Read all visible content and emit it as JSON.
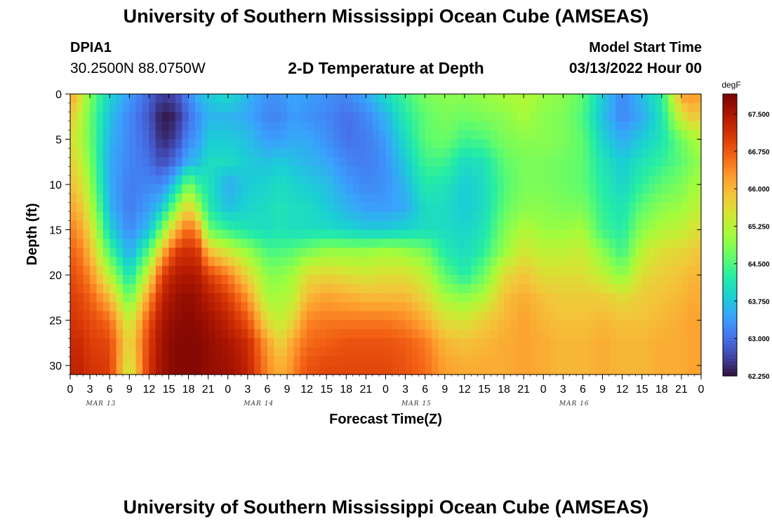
{
  "header": {
    "title": "University of Southern Mississippi Ocean Cube (AMSEAS)",
    "station_id": "DPIA1",
    "coordinates": "30.2500N  88.0750W",
    "subtitle": "2-D Temperature at Depth",
    "model_start_label": "Model Start Time",
    "model_start_value": "03/13/2022 Hour 00"
  },
  "footer": {
    "title": "University of Southern Mississippi Ocean Cube (AMSEAS)"
  },
  "chart_data": {
    "type": "heatmap",
    "title": "2-D Temperature at Depth",
    "xlabel": "Forecast Time(Z)",
    "ylabel": "Depth (ft)",
    "x_tick_labels": [
      "0",
      "3",
      "6",
      "9",
      "12",
      "15",
      "18",
      "21",
      "0",
      "3",
      "6",
      "9",
      "12",
      "15",
      "18",
      "21",
      "0",
      "3",
      "6",
      "9",
      "12",
      "15",
      "18",
      "21",
      "0",
      "3",
      "6",
      "9",
      "12",
      "15",
      "18",
      "21",
      "0"
    ],
    "day_labels": [
      "MAR 13",
      "MAR 14",
      "MAR 15",
      "MAR 16"
    ],
    "xlim_hours": [
      0,
      96
    ],
    "y_ticks": [
      0,
      5,
      10,
      15,
      20,
      25,
      30
    ],
    "ylim_ft": [
      0,
      31
    ],
    "colorbar": {
      "unit": "degF",
      "ticks": [
        "67.500",
        "66.750",
        "66.000",
        "65.250",
        "64.500",
        "63.750",
        "63.000",
        "62.250"
      ],
      "range": [
        62.25,
        67.9
      ]
    },
    "profile_hours": [
      0,
      1.5,
      3,
      6,
      9,
      12,
      14,
      16,
      18,
      19.5,
      21,
      24,
      27,
      30,
      32,
      34,
      36,
      39,
      42,
      45,
      48,
      51,
      54,
      57,
      60,
      63,
      66,
      69,
      72,
      75,
      78,
      81,
      84,
      87,
      90,
      93,
      94.5,
      96
    ],
    "depth_levels_ft": [
      0,
      2.5,
      5,
      7.5,
      10,
      12.5,
      15,
      17.5,
      20,
      22.5,
      25,
      27.5,
      30,
      31
    ],
    "temperature_degF": [
      [
        66.3,
        65.9,
        65.6,
        65.8,
        66.0,
        66.2,
        66.5,
        66.7,
        66.9,
        67.0,
        67.1,
        67.2,
        67.3,
        67.3
      ],
      [
        65.6,
        65.3,
        65.2,
        65.4,
        65.6,
        65.9,
        66.2,
        66.5,
        66.7,
        66.9,
        67.0,
        67.2,
        67.3,
        67.3
      ],
      [
        64.8,
        64.7,
        64.7,
        64.8,
        65.0,
        65.3,
        65.7,
        66.0,
        66.4,
        66.7,
        66.9,
        67.0,
        67.1,
        67.1
      ],
      [
        63.9,
        63.7,
        63.6,
        63.5,
        63.5,
        63.6,
        63.9,
        64.5,
        65.2,
        66.0,
        66.6,
        66.9,
        67.0,
        67.0
      ],
      [
        63.4,
        63.2,
        63.2,
        63.2,
        63.1,
        63.1,
        63.2,
        63.5,
        64.0,
        64.6,
        65.3,
        65.6,
        65.4,
        65.3
      ],
      [
        62.9,
        62.8,
        62.9,
        63.0,
        63.2,
        63.4,
        63.7,
        64.6,
        65.5,
        66.3,
        66.8,
        67.0,
        67.1,
        67.1
      ],
      [
        62.6,
        62.3,
        62.4,
        62.7,
        63.2,
        63.8,
        64.8,
        66.0,
        67.0,
        67.3,
        67.5,
        67.6,
        67.6,
        67.6
      ],
      [
        62.7,
        62.4,
        62.6,
        63.0,
        63.8,
        64.8,
        66.0,
        67.0,
        67.4,
        67.6,
        67.7,
        67.8,
        67.8,
        67.8
      ],
      [
        63.2,
        63.0,
        63.2,
        63.6,
        64.8,
        65.8,
        66.7,
        67.2,
        67.5,
        67.7,
        67.8,
        67.8,
        67.8,
        67.8
      ],
      [
        63.6,
        63.3,
        63.4,
        63.7,
        64.3,
        65.0,
        66.2,
        67.0,
        67.4,
        67.6,
        67.7,
        67.8,
        67.8,
        67.8
      ],
      [
        63.8,
        63.6,
        63.8,
        64.0,
        64.1,
        64.2,
        64.7,
        66.0,
        67.0,
        67.4,
        67.6,
        67.7,
        67.7,
        67.7
      ],
      [
        64.0,
        63.6,
        63.8,
        64.0,
        63.5,
        63.7,
        64.3,
        65.5,
        66.5,
        67.0,
        67.3,
        67.5,
        67.6,
        67.6
      ],
      [
        63.6,
        63.5,
        63.7,
        63.8,
        63.8,
        63.9,
        64.1,
        65.0,
        65.7,
        66.3,
        66.8,
        67.2,
        67.3,
        67.3
      ],
      [
        63.3,
        63.2,
        63.4,
        63.7,
        63.9,
        64.0,
        64.0,
        64.5,
        64.9,
        65.1,
        65.6,
        66.2,
        66.4,
        66.4
      ],
      [
        63.3,
        63.2,
        63.4,
        63.8,
        64.0,
        64.1,
        64.1,
        64.5,
        64.9,
        65.1,
        65.3,
        65.7,
        66.0,
        66.0
      ],
      [
        63.5,
        63.4,
        63.5,
        63.7,
        63.9,
        64.0,
        64.0,
        64.6,
        65.1,
        65.3,
        65.7,
        66.2,
        66.4,
        66.4
      ],
      [
        63.4,
        63.3,
        63.5,
        63.6,
        63.8,
        64.0,
        64.0,
        64.8,
        65.6,
        66.0,
        66.4,
        66.6,
        66.8,
        66.8
      ],
      [
        63.3,
        63.2,
        63.3,
        63.5,
        63.7,
        63.8,
        64.0,
        65.0,
        65.7,
        66.2,
        66.5,
        66.7,
        66.9,
        66.9
      ],
      [
        63.2,
        63.0,
        63.0,
        63.2,
        63.4,
        63.6,
        63.9,
        65.0,
        65.6,
        66.1,
        66.5,
        66.8,
        66.9,
        66.9
      ],
      [
        63.5,
        63.2,
        63.1,
        63.1,
        63.2,
        63.4,
        63.8,
        65.0,
        65.5,
        66.0,
        66.5,
        66.8,
        66.9,
        66.9
      ],
      [
        64.0,
        63.6,
        63.4,
        63.3,
        63.3,
        63.4,
        63.8,
        65.1,
        65.6,
        66.0,
        66.5,
        66.8,
        66.9,
        66.9
      ],
      [
        64.4,
        64.2,
        64.0,
        63.8,
        63.6,
        63.5,
        63.9,
        65.0,
        65.6,
        66.0,
        66.4,
        66.7,
        66.8,
        66.8
      ],
      [
        64.8,
        64.6,
        64.6,
        64.4,
        64.2,
        64.0,
        64.0,
        64.8,
        65.3,
        65.7,
        66.1,
        66.5,
        66.6,
        66.6
      ],
      [
        64.9,
        64.8,
        64.7,
        64.4,
        64.1,
        64.0,
        64.0,
        64.2,
        64.6,
        65.1,
        65.6,
        66.0,
        66.2,
        66.2
      ],
      [
        64.9,
        64.7,
        64.4,
        64.0,
        63.8,
        63.8,
        63.9,
        64.0,
        64.2,
        64.9,
        65.5,
        65.9,
        66.1,
        66.1
      ],
      [
        65.0,
        64.8,
        64.5,
        64.1,
        64.0,
        64.0,
        64.1,
        64.3,
        64.7,
        65.2,
        65.8,
        66.0,
        66.1,
        66.1
      ],
      [
        65.1,
        64.9,
        64.8,
        64.6,
        64.5,
        64.6,
        64.8,
        65.0,
        65.6,
        65.9,
        66.0,
        66.1,
        66.1,
        66.1
      ],
      [
        65.2,
        65.1,
        64.9,
        64.8,
        64.8,
        64.9,
        65.2,
        65.5,
        65.9,
        66.1,
        66.2,
        66.2,
        66.2,
        66.2
      ],
      [
        65.0,
        64.9,
        64.9,
        64.8,
        64.8,
        64.9,
        65.0,
        65.3,
        65.6,
        65.9,
        66.0,
        66.1,
        66.1,
        66.1
      ],
      [
        64.9,
        64.8,
        64.8,
        64.7,
        64.7,
        64.8,
        65.0,
        65.3,
        65.6,
        65.8,
        65.9,
        66.0,
        66.0,
        66.0
      ],
      [
        64.6,
        64.5,
        64.6,
        64.6,
        64.6,
        64.8,
        65.1,
        65.4,
        65.6,
        65.8,
        65.9,
        66.0,
        66.0,
        66.0
      ],
      [
        63.8,
        63.7,
        63.9,
        64.1,
        64.2,
        64.3,
        64.4,
        64.9,
        65.3,
        65.8,
        66.0,
        66.1,
        66.1,
        66.1
      ],
      [
        63.2,
        63.2,
        63.5,
        63.8,
        63.9,
        64.1,
        64.2,
        64.4,
        64.9,
        65.6,
        65.9,
        66.0,
        66.0,
        66.0
      ],
      [
        63.7,
        63.5,
        63.8,
        64.1,
        64.3,
        64.6,
        64.9,
        65.3,
        65.6,
        65.8,
        65.9,
        66.0,
        66.0,
        66.0
      ],
      [
        64.2,
        64.1,
        64.1,
        64.3,
        64.6,
        64.9,
        65.2,
        65.6,
        65.8,
        65.9,
        66.0,
        66.1,
        66.1,
        66.1
      ],
      [
        66.2,
        65.5,
        64.7,
        64.6,
        64.8,
        65.0,
        65.3,
        65.7,
        65.9,
        66.0,
        66.1,
        66.1,
        66.1,
        66.1
      ],
      [
        66.3,
        65.8,
        65.0,
        64.8,
        65.0,
        65.2,
        65.5,
        65.8,
        66.0,
        66.1,
        66.2,
        66.2,
        66.2,
        66.2
      ],
      [
        66.2,
        65.8,
        65.2,
        65.0,
        65.1,
        65.3,
        65.6,
        65.9,
        66.0,
        66.1,
        66.2,
        66.2,
        66.2,
        66.2
      ]
    ]
  }
}
